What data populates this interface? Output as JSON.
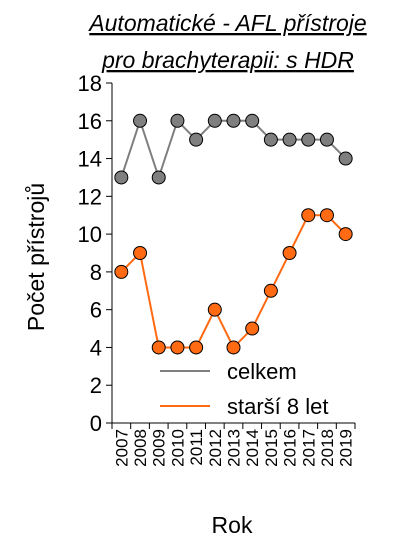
{
  "chart_data": {
    "type": "line",
    "title_line1": "Automatické - AFL přístroje",
    "title_line2": "pro brachyterapii: s HDR",
    "xlabel": "Rok",
    "ylabel": "Počet přístrojů",
    "categories": [
      "2007",
      "2008",
      "2009",
      "2010",
      "2011",
      "2012",
      "2013",
      "2014",
      "2015",
      "2016",
      "2017",
      "2018",
      "2019"
    ],
    "ylim": [
      0,
      18
    ],
    "yticks": [
      0,
      2,
      4,
      6,
      8,
      10,
      12,
      14,
      16,
      18
    ],
    "grid": false,
    "legend_position": "bottom-right",
    "series": [
      {
        "name": "celkem",
        "color": "#7f7f7f",
        "marker_fill": "#7f7f7f",
        "values": [
          13,
          16,
          13,
          16,
          15,
          16,
          16,
          16,
          15,
          15,
          15,
          15,
          14
        ]
      },
      {
        "name": "starší 8 let",
        "color": "#ff6a13",
        "marker_fill": "#ff6a13",
        "values": [
          8,
          9,
          4,
          4,
          4,
          6,
          4,
          5,
          7,
          9,
          11,
          11,
          10
        ]
      }
    ]
  }
}
